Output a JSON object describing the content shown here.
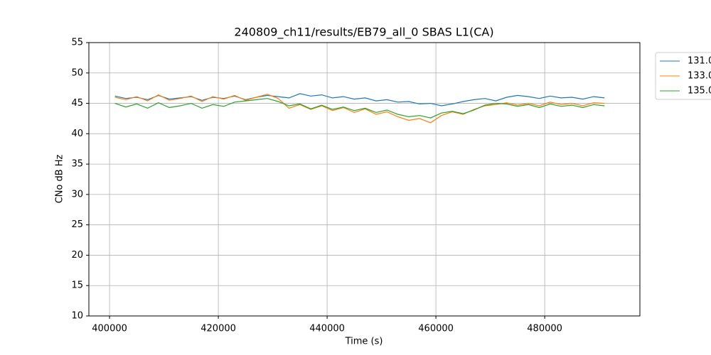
{
  "chart_data": {
    "type": "line",
    "title": "240809_ch11/results/EB79_all_0 SBAS L1(CA)",
    "xlabel": "Time (s)",
    "ylabel": "CNo dB Hz",
    "x": [
      401000,
      403000,
      405000,
      407000,
      409000,
      411000,
      413000,
      415000,
      417000,
      419000,
      421000,
      423000,
      425000,
      427000,
      429000,
      431000,
      433000,
      435000,
      437000,
      439000,
      441000,
      443000,
      445000,
      447000,
      449000,
      451000,
      453000,
      455000,
      457000,
      459000,
      461000,
      463000,
      465000,
      467000,
      469000,
      471000,
      473000,
      475000,
      477000,
      479000,
      481000,
      483000,
      485000,
      487000,
      489000,
      491000
    ],
    "series": [
      {
        "name": "131.0",
        "color": "#1f77b4",
        "values": [
          46.2,
          45.8,
          46.0,
          45.6,
          46.3,
          45.7,
          45.9,
          46.1,
          45.5,
          46.0,
          45.8,
          46.2,
          45.6,
          46.0,
          46.3,
          46.1,
          45.9,
          46.6,
          46.2,
          46.4,
          45.9,
          46.1,
          45.7,
          45.9,
          45.4,
          45.6,
          45.2,
          45.3,
          44.9,
          45.0,
          44.6,
          44.9,
          45.3,
          45.6,
          45.8,
          45.4,
          46.0,
          46.3,
          46.1,
          45.8,
          46.2,
          45.9,
          46.0,
          45.7,
          46.1,
          45.9
        ]
      },
      {
        "name": "133.0",
        "color": "#ff7f0e",
        "values": [
          46.0,
          45.6,
          46.1,
          45.4,
          46.4,
          45.5,
          45.8,
          46.2,
          45.3,
          46.1,
          45.7,
          46.3,
          45.5,
          46.0,
          46.5,
          45.8,
          44.2,
          44.8,
          44.0,
          44.6,
          43.8,
          44.3,
          43.5,
          44.1,
          43.2,
          43.6,
          42.8,
          42.2,
          42.5,
          41.8,
          43.0,
          43.6,
          43.2,
          44.0,
          44.6,
          44.8,
          45.1,
          44.7,
          45.0,
          44.6,
          45.2,
          44.8,
          45.0,
          44.6,
          45.1,
          45.0
        ]
      },
      {
        "name": "135.0",
        "color": "#2ca02c",
        "values": [
          45.0,
          44.4,
          44.9,
          44.2,
          45.1,
          44.3,
          44.6,
          45.0,
          44.2,
          44.8,
          44.5,
          45.2,
          45.4,
          45.6,
          45.8,
          45.3,
          44.6,
          44.9,
          44.1,
          44.7,
          44.0,
          44.4,
          43.8,
          44.2,
          43.5,
          43.9,
          43.2,
          42.8,
          43.0,
          42.6,
          43.4,
          43.7,
          43.3,
          43.9,
          44.7,
          45.0,
          44.9,
          44.5,
          44.8,
          44.3,
          44.9,
          44.5,
          44.7,
          44.3,
          44.8,
          44.6
        ]
      }
    ],
    "xlim": [
      396200,
      497500
    ],
    "xticks": [
      400000,
      420000,
      440000,
      460000,
      480000
    ],
    "ylim": [
      10,
      55
    ],
    "yticks": [
      10,
      15,
      20,
      25,
      30,
      35,
      40,
      45,
      50,
      55
    ],
    "grid": true
  }
}
